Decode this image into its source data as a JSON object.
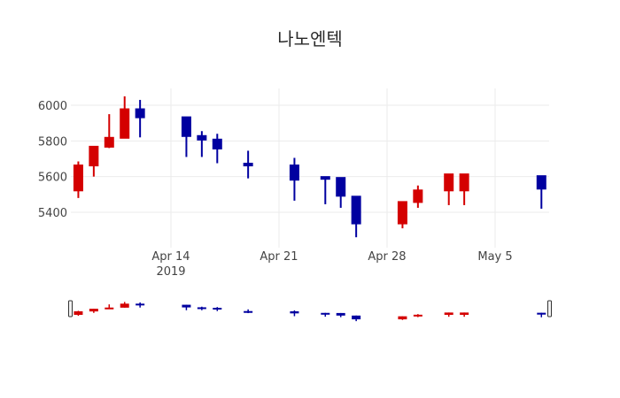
{
  "chart_data": {
    "type": "candlestick",
    "title": "나노엔텍",
    "xlabel": "",
    "ylabel": "",
    "ylim": [
      5228,
      6094
    ],
    "y_ticks": [
      5400,
      5600,
      5800,
      6000
    ],
    "x_ticks": [
      {
        "date": "2019-04-14",
        "label": "Apr 14",
        "sublabel": "2019"
      },
      {
        "date": "2019-04-21",
        "label": "Apr 21",
        "sublabel": ""
      },
      {
        "date": "2019-04-28",
        "label": "Apr 28",
        "sublabel": ""
      },
      {
        "date": "2019-05-05",
        "label": "May 5",
        "sublabel": ""
      }
    ],
    "grid": true,
    "range_slider": true,
    "increasing_color": "#d40000",
    "decreasing_color": "#0000a0",
    "series": [
      {
        "date": "2019-04-08",
        "open": 5520,
        "high": 5685,
        "low": 5480,
        "close": 5665
      },
      {
        "date": "2019-04-09",
        "open": 5660,
        "high": 5770,
        "low": 5600,
        "close": 5770
      },
      {
        "date": "2019-04-10",
        "open": 5765,
        "high": 5950,
        "low": 5760,
        "close": 5820
      },
      {
        "date": "2019-04-11",
        "open": 5815,
        "high": 6050,
        "low": 5815,
        "close": 5980
      },
      {
        "date": "2019-04-12",
        "open": 5980,
        "high": 6030,
        "low": 5820,
        "close": 5930
      },
      {
        "date": "2019-04-15",
        "open": 5935,
        "high": 5935,
        "low": 5710,
        "close": 5825
      },
      {
        "date": "2019-04-16",
        "open": 5830,
        "high": 5855,
        "low": 5710,
        "close": 5805
      },
      {
        "date": "2019-04-17",
        "open": 5810,
        "high": 5840,
        "low": 5675,
        "close": 5755
      },
      {
        "date": "2019-04-19",
        "open": 5675,
        "high": 5745,
        "low": 5590,
        "close": 5660
      },
      {
        "date": "2019-04-22",
        "open": 5665,
        "high": 5705,
        "low": 5465,
        "close": 5580
      },
      {
        "date": "2019-04-24",
        "open": 5600,
        "high": 5600,
        "low": 5445,
        "close": 5585
      },
      {
        "date": "2019-04-25",
        "open": 5595,
        "high": 5595,
        "low": 5425,
        "close": 5490
      },
      {
        "date": "2019-04-26",
        "open": 5490,
        "high": 5490,
        "low": 5260,
        "close": 5335
      },
      {
        "date": "2019-04-29",
        "open": 5335,
        "high": 5460,
        "low": 5310,
        "close": 5460
      },
      {
        "date": "2019-04-30",
        "open": 5455,
        "high": 5550,
        "low": 5425,
        "close": 5525
      },
      {
        "date": "2019-05-02",
        "open": 5520,
        "high": 5615,
        "low": 5440,
        "close": 5615
      },
      {
        "date": "2019-05-03",
        "open": 5520,
        "high": 5615,
        "low": 5440,
        "close": 5615
      },
      {
        "date": "2019-05-08",
        "open": 5605,
        "high": 5605,
        "low": 5420,
        "close": 5530
      }
    ]
  }
}
